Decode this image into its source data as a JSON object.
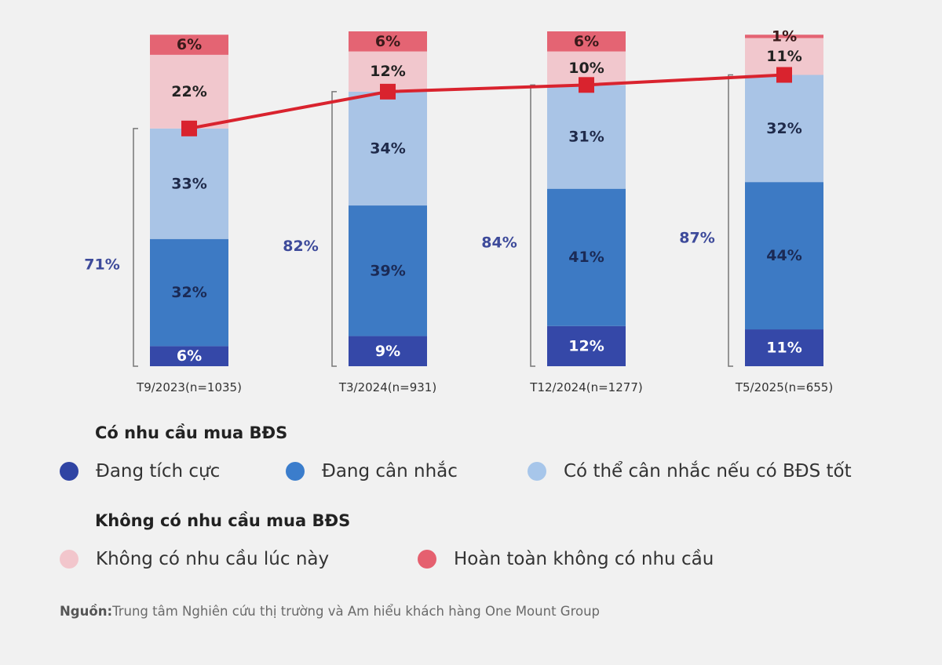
{
  "chart_data": {
    "type": "bar",
    "stacked": true,
    "title": "",
    "xlabel": "",
    "ylabel": "",
    "ylim": [
      0,
      100
    ],
    "grid": false,
    "categories": [
      "T9/2023(n=1035)",
      "T3/2024(n=931)",
      "T12/2024(n=1277)",
      "T5/2025(n=655)"
    ],
    "series": [
      {
        "name": "Đang tích cực",
        "group": "Có nhu cầu mua BĐS",
        "color": "#3548a8",
        "label_color": "#ffffff",
        "values": [
          6,
          9,
          12,
          11
        ]
      },
      {
        "name": "Đang cân nhắc",
        "group": "Có nhu cầu mua BĐS",
        "color": "#3d7ac4",
        "label_color": "#1b2a55",
        "values": [
          32,
          39,
          41,
          44
        ]
      },
      {
        "name": "Có thể cân nhắc nếu có BĐS tốt",
        "group": "Có nhu cầu mua BĐS",
        "color": "#a9c4e6",
        "label_color": "#1f2a4a",
        "values": [
          33,
          34,
          31,
          32
        ]
      },
      {
        "name": "Không có nhu cầu lúc này",
        "group": "Không có nhu cầu mua BĐS",
        "color": "#f1c7cd",
        "label_color": "#222222",
        "values": [
          22,
          12,
          10,
          11
        ]
      },
      {
        "name": "Hoàn toàn không có nhu cầu",
        "group": "Không có nhu cầu mua BĐS",
        "color": "#e46473",
        "label_color": "#3a1a1a",
        "values": [
          6,
          6,
          6,
          1
        ]
      }
    ],
    "line": {
      "name": "Tổng có nhu cầu mua BĐS",
      "color": "#d9232e",
      "values": [
        71,
        82,
        84,
        87
      ]
    },
    "bracket_labels": [
      "71%",
      "82%",
      "84%",
      "87%"
    ],
    "legend_placement": "bottom"
  },
  "legend": {
    "group_1_title": "Có nhu cầu mua BĐS",
    "group_2_title": "Không có nhu cầu mua BĐS",
    "items": [
      {
        "label": "Đang tích cực",
        "color": "#2f44a3"
      },
      {
        "label": "Đang cân nhắc",
        "color": "#3b7dcc"
      },
      {
        "label": "Có thể cân nhắc nếu có BĐS tốt",
        "color": "#a7c6ea"
      },
      {
        "label": "Không có nhu cầu lúc này",
        "color": "#f2c6cc"
      },
      {
        "label": "Hoàn toàn không có nhu cầu",
        "color": "#e5606f"
      }
    ]
  },
  "source": {
    "prefix": "Nguồn:",
    "text": "Trung tâm Nghiên cứu thị trường và Am hiểu khách hàng One Mount Group"
  }
}
